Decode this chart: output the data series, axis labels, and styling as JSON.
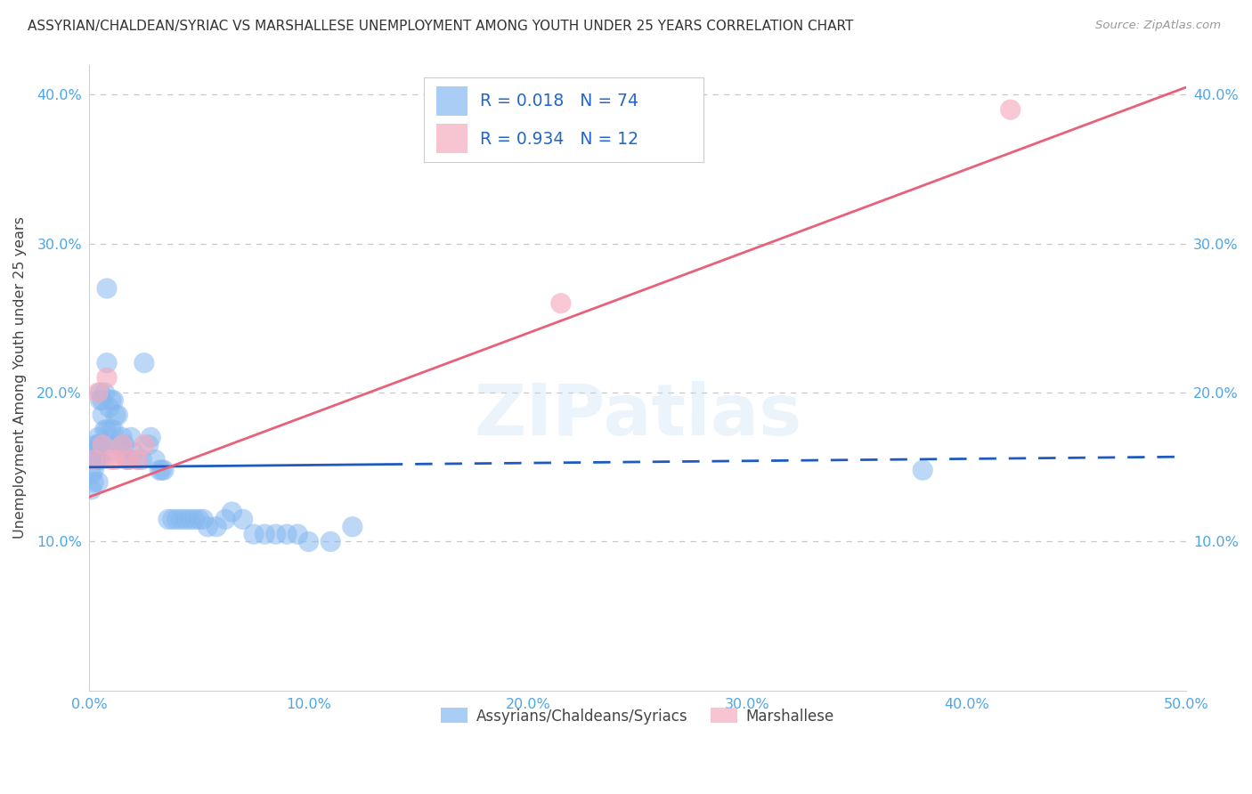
{
  "title": "ASSYRIAN/CHALDEAN/SYRIAC VS MARSHALLESE UNEMPLOYMENT AMONG YOUTH UNDER 25 YEARS CORRELATION CHART",
  "source": "Source: ZipAtlas.com",
  "ylabel": "Unemployment Among Youth under 25 years",
  "xlim": [
    0.0,
    0.5
  ],
  "ylim": [
    0.0,
    0.42
  ],
  "xticks": [
    0.0,
    0.1,
    0.2,
    0.3,
    0.4,
    0.5
  ],
  "yticks": [
    0.1,
    0.2,
    0.3,
    0.4
  ],
  "ytick_labels": [
    "10.0%",
    "20.0%",
    "30.0%",
    "40.0%"
  ],
  "xtick_labels": [
    "0.0%",
    "10.0%",
    "20.0%",
    "30.0%",
    "40.0%",
    "50.0%"
  ],
  "legend_labels": [
    "Assyrians/Chaldeans/Syriacs",
    "Marshallese"
  ],
  "R_blue": 0.018,
  "N_blue": 74,
  "R_pink": 0.934,
  "N_pink": 12,
  "blue_color": "#85b8f0",
  "pink_color": "#f5abbe",
  "blue_line_color": "#1f5bbf",
  "pink_line_color": "#e8607a",
  "watermark": "ZIPatlas",
  "blue_scatter_x": [
    0.001,
    0.001,
    0.001,
    0.002,
    0.002,
    0.002,
    0.002,
    0.003,
    0.003,
    0.003,
    0.004,
    0.004,
    0.004,
    0.004,
    0.005,
    0.005,
    0.005,
    0.005,
    0.006,
    0.006,
    0.006,
    0.007,
    0.007,
    0.008,
    0.008,
    0.008,
    0.009,
    0.009,
    0.01,
    0.01,
    0.011,
    0.011,
    0.012,
    0.013,
    0.013,
    0.014,
    0.015,
    0.016,
    0.017,
    0.018,
    0.019,
    0.02,
    0.022,
    0.024,
    0.025,
    0.027,
    0.028,
    0.03,
    0.032,
    0.033,
    0.034,
    0.036,
    0.038,
    0.04,
    0.042,
    0.044,
    0.046,
    0.048,
    0.05,
    0.052,
    0.054,
    0.058,
    0.062,
    0.065,
    0.07,
    0.075,
    0.08,
    0.085,
    0.09,
    0.095,
    0.1,
    0.11,
    0.12,
    0.38
  ],
  "blue_scatter_y": [
    0.155,
    0.145,
    0.135,
    0.16,
    0.155,
    0.148,
    0.14,
    0.165,
    0.16,
    0.155,
    0.17,
    0.165,
    0.155,
    0.14,
    0.2,
    0.195,
    0.165,
    0.155,
    0.195,
    0.185,
    0.165,
    0.2,
    0.175,
    0.27,
    0.22,
    0.175,
    0.19,
    0.16,
    0.195,
    0.175,
    0.195,
    0.175,
    0.185,
    0.185,
    0.165,
    0.165,
    0.17,
    0.165,
    0.155,
    0.155,
    0.17,
    0.16,
    0.155,
    0.155,
    0.22,
    0.165,
    0.17,
    0.155,
    0.148,
    0.148,
    0.148,
    0.115,
    0.115,
    0.115,
    0.115,
    0.115,
    0.115,
    0.115,
    0.115,
    0.115,
    0.11,
    0.11,
    0.115,
    0.12,
    0.115,
    0.105,
    0.105,
    0.105,
    0.105,
    0.105,
    0.1,
    0.1,
    0.11,
    0.148
  ],
  "pink_scatter_x": [
    0.002,
    0.004,
    0.006,
    0.008,
    0.01,
    0.012,
    0.015,
    0.018,
    0.022,
    0.025,
    0.215,
    0.42
  ],
  "pink_scatter_y": [
    0.155,
    0.2,
    0.165,
    0.21,
    0.155,
    0.155,
    0.165,
    0.155,
    0.155,
    0.165,
    0.26,
    0.39
  ],
  "blue_line_x_start": 0.0,
  "blue_line_x_end": 0.5,
  "blue_line_y_start": 0.15,
  "blue_line_y_end": 0.157,
  "blue_line_solid_end": 0.135,
  "pink_line_x_start": 0.0,
  "pink_line_x_end": 0.5,
  "pink_line_y_start": 0.13,
  "pink_line_y_end": 0.405
}
